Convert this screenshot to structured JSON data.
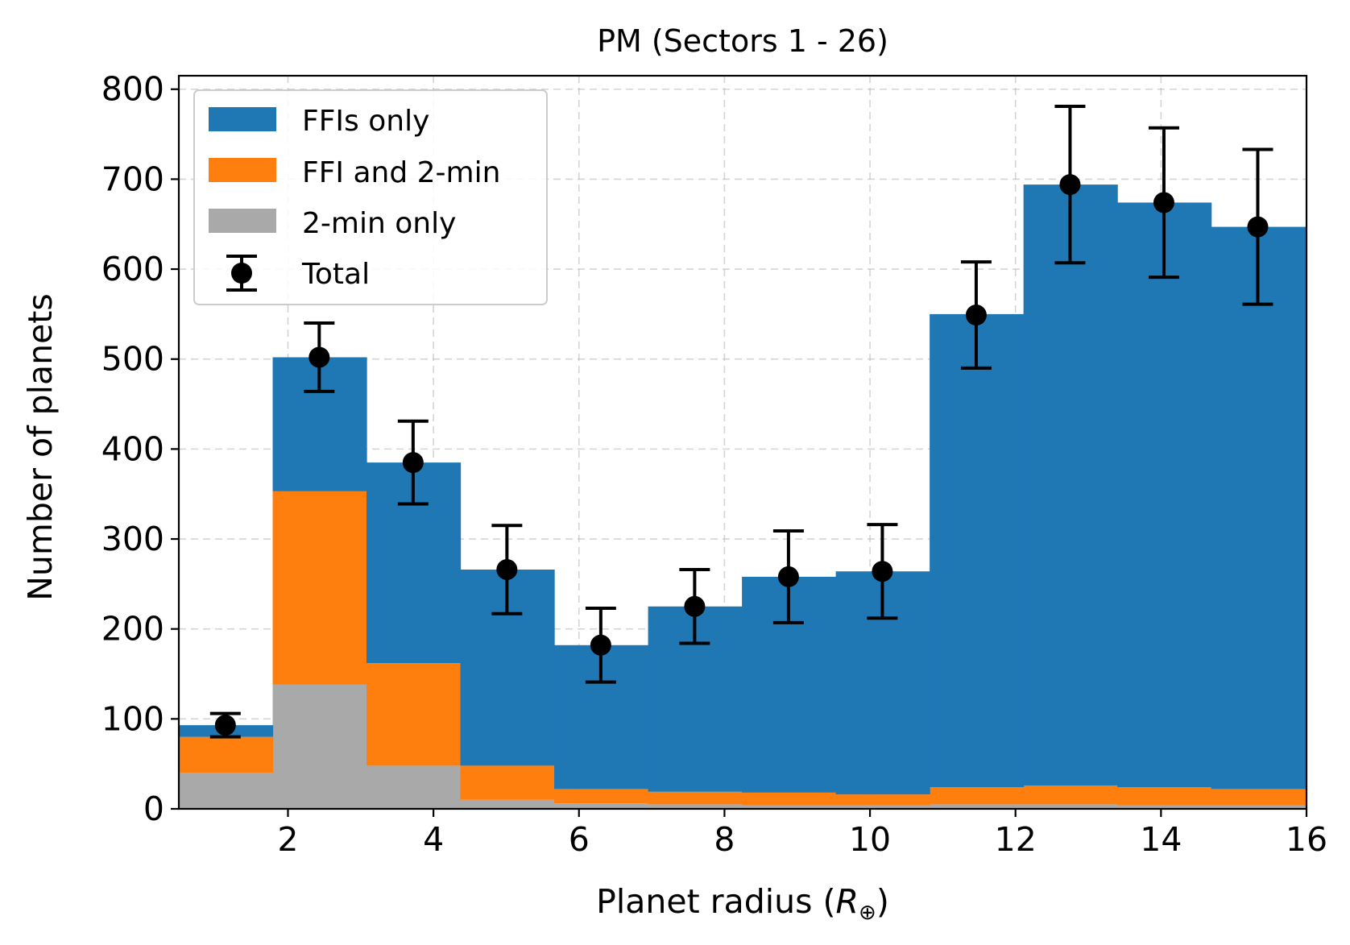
{
  "chart_data": {
    "type": "bar",
    "title": "PM (Sectors 1 - 26)",
    "xlabel": "Planet radius (",
    "xlabel_symbol": "R",
    "xlabel_subscript": "⊕",
    "xlabel_close": ")",
    "ylabel": "Number of planets",
    "xlim": [
      0.5,
      16
    ],
    "ylim": [
      0,
      815
    ],
    "xticks": [
      2,
      4,
      6,
      8,
      10,
      12,
      14,
      16
    ],
    "yticks": [
      0,
      100,
      200,
      300,
      400,
      500,
      600,
      700,
      800
    ],
    "grid": true,
    "stacked": true,
    "legend_position": "top-left",
    "bin_edges": [
      0.5,
      1.79,
      3.08,
      4.37,
      5.66,
      6.95,
      8.24,
      9.53,
      10.82,
      12.11,
      13.4,
      14.69,
      16.0
    ],
    "series": [
      {
        "name": "2-min only",
        "color": "#a9a9a9",
        "values": [
          40,
          138,
          48,
          10,
          6,
          5,
          4,
          4,
          5,
          5,
          4,
          4
        ]
      },
      {
        "name": "FFI and 2-min",
        "color": "#ff7f0e",
        "values": [
          40,
          215,
          114,
          38,
          16,
          14,
          14,
          12,
          19,
          21,
          20,
          18
        ]
      },
      {
        "name": "FFIs only",
        "color": "#1f77b4",
        "values": [
          13,
          149,
          223,
          218,
          160,
          206,
          240,
          248,
          526,
          668,
          650,
          625
        ]
      }
    ],
    "total": {
      "name": "Total",
      "color": "#000000",
      "x": [
        1.14,
        2.43,
        3.72,
        5.01,
        6.3,
        7.59,
        8.88,
        10.17,
        11.46,
        12.75,
        14.04,
        15.33
      ],
      "values": [
        93,
        502,
        385,
        266,
        182,
        225,
        258,
        264,
        549,
        694,
        674,
        647
      ],
      "err_low": [
        13,
        38,
        46,
        49,
        41,
        41,
        51,
        52,
        59,
        87,
        83,
        86
      ],
      "err_high": [
        13,
        38,
        46,
        49,
        41,
        41,
        51,
        52,
        59,
        87,
        83,
        86
      ]
    }
  }
}
